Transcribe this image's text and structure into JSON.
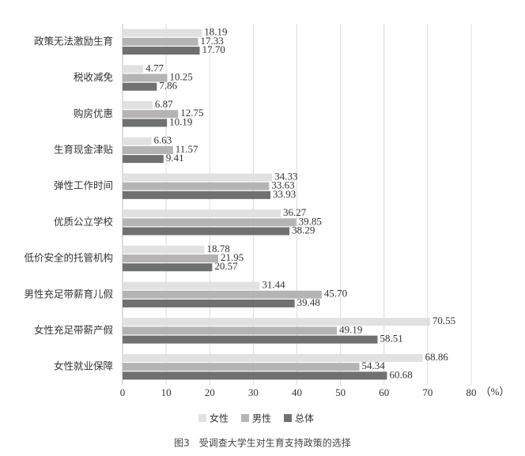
{
  "chart_data": {
    "type": "bar",
    "orientation": "horizontal",
    "caption": "图3　受调查大学生对生育支持政策的选择",
    "x_label": "（%）",
    "categories": [
      "政策无法激励生育",
      "税收减免",
      "购房优惠",
      "生育现金津贴",
      "弹性工作时间",
      "优质公立学校",
      "低价安全的托管机构",
      "男性充足带薪育儿假",
      "女性充足带薪产假",
      "女性就业保障"
    ],
    "series": [
      {
        "name": "女性",
        "color": "#e1e1e1",
        "values": [
          18.19,
          4.77,
          6.87,
          6.63,
          34.33,
          36.27,
          18.78,
          31.44,
          70.55,
          68.86
        ],
        "value_labels": [
          "18.19",
          "4.77",
          "6.87",
          "6.63",
          "34.33",
          "36.27",
          "18.78",
          "31.44",
          "70.55",
          "68.86"
        ]
      },
      {
        "name": "男性",
        "color": "#b5b3b3",
        "values": [
          17.33,
          10.25,
          12.75,
          11.57,
          33.63,
          39.85,
          21.95,
          45.7,
          49.19,
          54.34
        ],
        "value_labels": [
          "17.33",
          "10.25",
          "12.75",
          "11.57",
          "33.63",
          "39.85",
          "21.95",
          "45.70",
          "49.19",
          "54.34"
        ]
      },
      {
        "name": "总体",
        "color": "#6f7070",
        "values": [
          17.7,
          7.86,
          10.19,
          9.41,
          33.93,
          38.29,
          20.57,
          39.48,
          58.51,
          60.68
        ],
        "value_labels": [
          "17.70",
          "7.86",
          "10.19",
          "9.41",
          "33.93",
          "38.29",
          "20.57",
          "39.48",
          "58.51",
          "60.68"
        ]
      }
    ],
    "xlim": [
      0,
      80
    ],
    "xticks": [
      0,
      10,
      20,
      30,
      40,
      50,
      60,
      70,
      80
    ],
    "grid": true,
    "legend": "bottom"
  }
}
